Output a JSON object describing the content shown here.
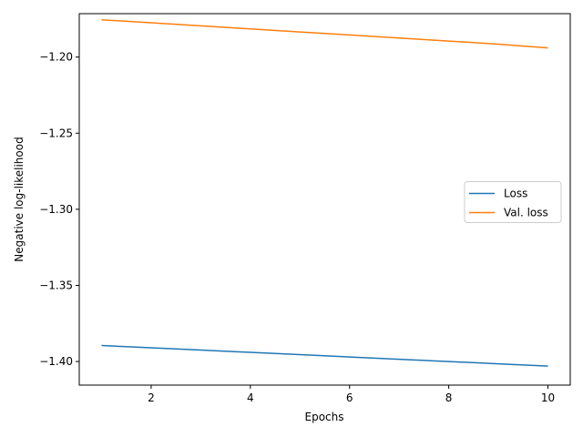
{
  "chart_data": {
    "type": "line",
    "title": "",
    "xlabel": "Epochs",
    "ylabel": "Negative log-likelihood",
    "xlim": [
      0.55,
      10.45
    ],
    "ylim": [
      -1.4155,
      -1.1715
    ],
    "xticks": [
      2,
      4,
      6,
      8,
      10
    ],
    "xtick_labels": [
      "2",
      "4",
      "6",
      "8",
      "10"
    ],
    "yticks": [
      -1.4,
      -1.35,
      -1.3,
      -1.25,
      -1.2
    ],
    "ytick_labels": [
      "−1.40",
      "−1.35",
      "−1.30",
      "−1.25",
      "−1.20"
    ],
    "grid": false,
    "legend_position": "center-right",
    "x": [
      1,
      2,
      3,
      4,
      5,
      6,
      7,
      8,
      9,
      10
    ],
    "series": [
      {
        "name": "Loss",
        "color": "#1f77b4",
        "values": [
          -1.3895,
          -1.391,
          -1.3925,
          -1.394,
          -1.3955,
          -1.397,
          -1.3985,
          -1.4,
          -1.4015,
          -1.403
        ]
      },
      {
        "name": "Val. loss",
        "color": "#ff7f0e",
        "values": [
          -1.1755,
          -1.1775,
          -1.1795,
          -1.1815,
          -1.1835,
          -1.1855,
          -1.1875,
          -1.1895,
          -1.1915,
          -1.194
        ]
      }
    ]
  }
}
